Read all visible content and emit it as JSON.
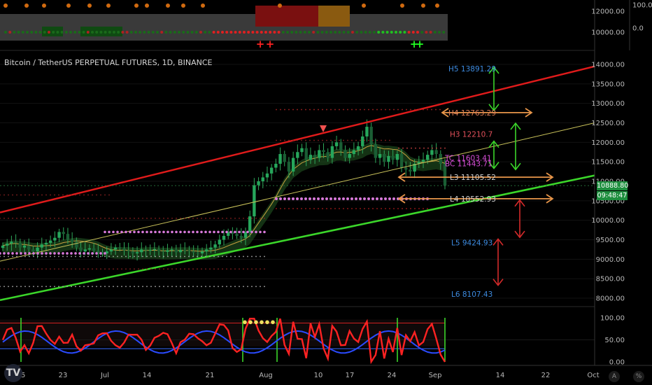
{
  "title": "Bitcoin / TetherUS PERPETUAL FUTURES, 1D, BINANCE",
  "logo_text": "TV",
  "corner_buttons": [
    "A",
    "%"
  ],
  "top_indicator": {
    "right_axis": [
      "12000.00",
      "10000.00"
    ],
    "right_values": [
      "100.0",
      "0.0"
    ],
    "ticks_left": [
      12000,
      10000
    ]
  },
  "price_panel": {
    "y_ticks": [
      14000,
      13500,
      13000,
      12500,
      12000,
      11500,
      11000,
      10500,
      10000,
      9500,
      9000,
      8500,
      8000
    ],
    "y_tick_labels": [
      "14000.00",
      "13500.00",
      "13000.00",
      "12500.00",
      "12000.00",
      "11500.00",
      "11000.00",
      "10500.00",
      "10000.00",
      "9500.00",
      "9000.00",
      "8500.00",
      "8000.00"
    ],
    "ylim": [
      7850,
      14150
    ],
    "last_price": "10888.80",
    "countdown": "09:48:47",
    "levels": [
      {
        "label": "H5 13891.29",
        "value": 13891.29,
        "color": "#3d8be0"
      },
      {
        "label": "H4 12763.29",
        "value": 12763.29,
        "color": "#e0815a"
      },
      {
        "label": "H3 12210.7",
        "value": 12210.7,
        "color": "#e0505a"
      },
      {
        "label": "L3 11105.52",
        "value": 11105.52,
        "color": "#cfcfcf"
      },
      {
        "label": "L4 10552.93",
        "value": 10552.93,
        "color": "#cfcfcf"
      },
      {
        "label": "L5 9424.93",
        "value": 9424.93,
        "color": "#3d8be0"
      },
      {
        "label": "L6 8107.43",
        "value": 8107.43,
        "color": "#3d8be0"
      }
    ],
    "overlap_labels": [
      "TC 11603.41",
      "BC 11443.71"
    ]
  },
  "oscillator": {
    "y_tick_labels": [
      "100.00",
      "50.00",
      "0.00"
    ],
    "ylim": [
      -5,
      110
    ]
  },
  "x_axis": {
    "labels": [
      "15",
      "23",
      "Jul",
      "14",
      "21",
      "Aug",
      "10",
      "17",
      "24",
      "Sep",
      "14",
      "22",
      "Oct"
    ]
  },
  "chart_data": {
    "type": "candlestick",
    "title": "Bitcoin / TetherUS PERPETUAL FUTURES, 1D, BINANCE",
    "y_ticks": [
      8000,
      8500,
      9000,
      9500,
      10000,
      10500,
      11000,
      11500,
      12000,
      12500,
      13000,
      13500,
      14000
    ],
    "ylim": [
      7850,
      14150
    ],
    "x_tick_labels": [
      "15",
      "23",
      "Jul",
      "14",
      "21",
      "Aug",
      "10",
      "17",
      "24",
      "Sep",
      "14",
      "22",
      "Oct"
    ],
    "candles_close": [
      9350,
      9400,
      9450,
      9420,
      9300,
      9350,
      9250,
      9200,
      9300,
      9380,
      9420,
      9480,
      9550,
      9700,
      9650,
      9500,
      9450,
      9300,
      9200,
      9250,
      9280,
      9220,
      9180,
      9150,
      9200,
      9250,
      9300,
      9280,
      9230,
      9200,
      9150,
      9180,
      9250,
      9230,
      9240,
      9260,
      9210,
      9190,
      9230,
      9250,
      9180,
      9240,
      9230,
      9210,
      9170,
      9150,
      9200,
      9250,
      9300,
      9380,
      9500,
      9600,
      9700,
      9650,
      9600,
      9550,
      9700,
      10100,
      10900,
      11000,
      11100,
      11200,
      11350,
      11450,
      11700,
      11500,
      11250,
      11600,
      11750,
      11850,
      11550,
      11680,
      11600,
      11800,
      11750,
      11600,
      11900,
      12000,
      11800,
      11600,
      11700,
      11800,
      11900,
      12150,
      12400,
      11950,
      11600,
      11700,
      11500,
      11650,
      11550,
      11700,
      11350,
      11300,
      11250,
      11450,
      11500,
      11550,
      11680,
      11800,
      11700,
      11450,
      10888.8
    ],
    "resistance_line": {
      "start": 10200,
      "end": 13950
    },
    "support_line": {
      "start": 7950,
      "end": 11150
    },
    "levels": [
      13891.29,
      12763.29,
      12210.7,
      11105.52,
      10552.93,
      9424.93,
      8107.43
    ],
    "series": [
      {
        "name": "Oscillator",
        "color": "#ff2222"
      },
      {
        "name": "Signal",
        "color": "#2a4bff"
      }
    ]
  }
}
